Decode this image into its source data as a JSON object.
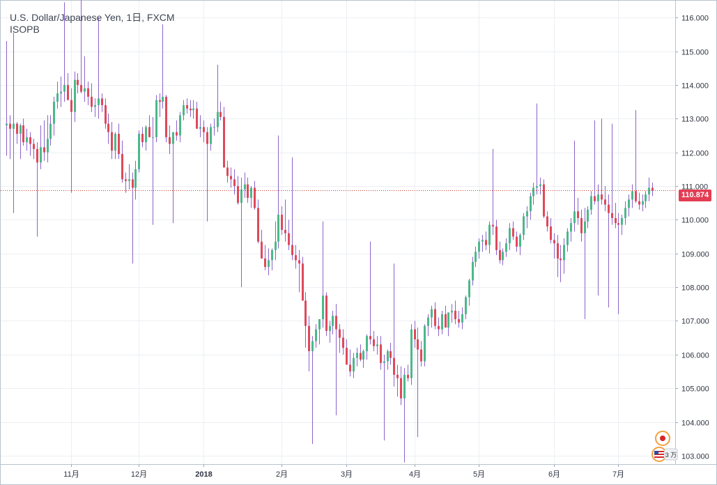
{
  "chart": {
    "title": "U.S. Dollar/Japanese Yen, 1日, FXCM",
    "subtitle": "ISOPB",
    "last_price_label": "110.874",
    "badge_text": "3 万"
  },
  "colors": {
    "up": "#4cb88a",
    "down": "#e0485a",
    "wick": "#8b63c9",
    "grid": "#eceff3",
    "axis_text": "#2f3440",
    "price_line": "#c0392b",
    "price_tag": "#e33d53"
  },
  "chart_data": {
    "type": "candlestick",
    "symbol": "USDJPY",
    "interval": "1日",
    "source": "FXCM",
    "ylim": [
      102.75,
      116.5
    ],
    "y_ticks": [
      "103.000",
      "104.000",
      "105.000",
      "106.000",
      "107.000",
      "108.000",
      "109.000",
      "110.000",
      "111.000",
      "112.000",
      "113.000",
      "114.000",
      "115.000",
      "116.000"
    ],
    "x_ticks": [
      {
        "label": "11月",
        "bar": 19
      },
      {
        "label": "12月",
        "bar": 39
      },
      {
        "label": "2018",
        "bar": 58
      },
      {
        "label": "2月",
        "bar": 81
      },
      {
        "label": "3月",
        "bar": 100
      },
      {
        "label": "4月",
        "bar": 120
      },
      {
        "label": "5月",
        "bar": 139
      },
      {
        "label": "6月",
        "bar": 161
      },
      {
        "label": "7月",
        "bar": 180
      }
    ],
    "last_price": 110.874,
    "candles": [
      [
        112.8,
        115.3,
        111.9,
        112.85
      ],
      [
        112.85,
        113.1,
        111.8,
        112.7
      ],
      [
        112.7,
        115.55,
        110.2,
        112.85
      ],
      [
        112.85,
        112.9,
        112.25,
        112.55
      ],
      [
        112.55,
        112.85,
        111.8,
        112.8
      ],
      [
        112.8,
        113.0,
        112.2,
        112.3
      ],
      [
        112.3,
        112.7,
        112.05,
        112.45
      ],
      [
        112.45,
        112.6,
        111.9,
        112.25
      ],
      [
        112.25,
        112.4,
        111.8,
        112.1
      ],
      [
        112.1,
        112.3,
        109.5,
        111.7
      ],
      [
        111.7,
        112.8,
        111.5,
        112.15
      ],
      [
        112.15,
        112.95,
        111.75,
        112.0
      ],
      [
        112.0,
        113.1,
        111.7,
        112.4
      ],
      [
        112.4,
        113.1,
        112.2,
        112.85
      ],
      [
        112.85,
        113.65,
        112.5,
        113.5
      ],
      [
        113.5,
        114.1,
        113.3,
        113.75
      ],
      [
        113.75,
        114.25,
        113.35,
        113.8
      ],
      [
        113.8,
        116.45,
        113.5,
        114.0
      ],
      [
        114.0,
        114.35,
        113.6,
        113.55
      ],
      [
        113.55,
        113.9,
        110.8,
        113.2
      ],
      [
        113.2,
        114.4,
        112.9,
        114.15
      ],
      [
        114.15,
        114.35,
        113.75,
        114.0
      ],
      [
        114.0,
        116.8,
        113.75,
        113.8
      ],
      [
        113.8,
        114.85,
        113.5,
        113.9
      ],
      [
        113.9,
        114.1,
        113.4,
        113.65
      ],
      [
        113.65,
        114.05,
        113.2,
        113.35
      ],
      [
        113.35,
        113.6,
        113.05,
        113.4
      ],
      [
        113.4,
        116.0,
        113.0,
        113.6
      ],
      [
        113.6,
        113.75,
        113.2,
        113.4
      ],
      [
        113.4,
        113.6,
        112.7,
        112.85
      ],
      [
        112.85,
        113.15,
        112.25,
        112.6
      ],
      [
        112.6,
        112.9,
        111.8,
        112.05
      ],
      [
        112.05,
        112.6,
        111.8,
        112.55
      ],
      [
        112.55,
        112.85,
        111.8,
        111.95
      ],
      [
        111.95,
        112.35,
        111.1,
        111.2
      ],
      [
        111.2,
        111.4,
        110.8,
        111.15
      ],
      [
        111.15,
        111.65,
        110.9,
        111.2
      ],
      [
        111.2,
        111.4,
        108.7,
        110.95
      ],
      [
        110.95,
        111.75,
        110.6,
        111.5
      ],
      [
        111.5,
        112.65,
        111.4,
        112.55
      ],
      [
        112.55,
        112.75,
        112.15,
        112.3
      ],
      [
        112.3,
        112.8,
        112.05,
        112.75
      ],
      [
        112.75,
        113.1,
        112.45,
        112.45
      ],
      [
        112.45,
        113.05,
        109.85,
        112.45
      ],
      [
        112.45,
        113.7,
        112.3,
        113.55
      ],
      [
        113.55,
        113.75,
        113.05,
        113.5
      ],
      [
        113.5,
        115.8,
        113.3,
        113.65
      ],
      [
        113.65,
        113.7,
        112.3,
        112.45
      ],
      [
        112.45,
        112.8,
        111.95,
        112.25
      ],
      [
        112.25,
        112.6,
        109.9,
        112.6
      ],
      [
        112.6,
        112.95,
        112.35,
        112.5
      ],
      [
        112.5,
        113.2,
        112.3,
        113.1
      ],
      [
        113.1,
        113.55,
        112.95,
        113.4
      ],
      [
        113.4,
        113.6,
        113.15,
        113.3
      ],
      [
        113.3,
        113.55,
        113.05,
        113.25
      ],
      [
        113.25,
        113.55,
        113.0,
        113.3
      ],
      [
        113.3,
        113.5,
        112.8,
        112.7
      ],
      [
        112.7,
        113.1,
        112.45,
        112.75
      ],
      [
        112.75,
        112.95,
        112.3,
        112.6
      ],
      [
        112.6,
        112.75,
        109.95,
        112.25
      ],
      [
        112.25,
        112.85,
        112.05,
        112.75
      ],
      [
        112.75,
        113.0,
        112.5,
        112.75
      ],
      [
        112.75,
        114.6,
        112.6,
        113.2
      ],
      [
        113.2,
        113.5,
        112.95,
        113.05
      ],
      [
        113.05,
        113.35,
        111.55,
        111.55
      ],
      [
        111.55,
        111.75,
        111.1,
        111.3
      ],
      [
        111.3,
        111.55,
        110.95,
        111.2
      ],
      [
        111.2,
        111.5,
        110.75,
        111.0
      ],
      [
        111.0,
        111.3,
        110.45,
        110.5
      ],
      [
        110.5,
        111.25,
        108.0,
        110.9
      ],
      [
        110.9,
        111.4,
        110.65,
        111.05
      ],
      [
        111.05,
        111.25,
        110.5,
        110.65
      ],
      [
        110.65,
        111.0,
        110.35,
        110.95
      ],
      [
        110.95,
        111.15,
        110.3,
        110.35
      ],
      [
        110.35,
        110.6,
        109.3,
        109.35
      ],
      [
        109.35,
        109.7,
        108.95,
        108.85
      ],
      [
        108.85,
        109.25,
        108.5,
        108.6
      ],
      [
        108.6,
        109.15,
        108.35,
        108.8
      ],
      [
        108.8,
        109.15,
        108.5,
        109.1
      ],
      [
        109.1,
        109.95,
        108.8,
        109.35
      ],
      [
        109.35,
        112.5,
        109.15,
        110.15
      ],
      [
        110.15,
        110.4,
        109.55,
        109.7
      ],
      [
        109.7,
        110.6,
        109.35,
        109.6
      ],
      [
        109.6,
        110.0,
        109.1,
        109.25
      ],
      [
        109.25,
        111.85,
        108.8,
        108.95
      ],
      [
        108.95,
        109.25,
        108.55,
        108.8
      ],
      [
        108.8,
        109.1,
        107.85,
        108.7
      ],
      [
        108.7,
        108.9,
        107.65,
        107.6
      ],
      [
        107.6,
        107.85,
        106.2,
        106.85
      ],
      [
        106.85,
        107.15,
        105.5,
        106.1
      ],
      [
        106.1,
        106.55,
        103.35,
        106.4
      ],
      [
        106.4,
        106.9,
        106.2,
        106.75
      ],
      [
        106.75,
        107.05,
        106.3,
        107.05
      ],
      [
        107.05,
        109.95,
        106.8,
        107.75
      ],
      [
        107.75,
        107.85,
        106.55,
        106.7
      ],
      [
        106.7,
        107.0,
        106.35,
        106.85
      ],
      [
        106.85,
        107.3,
        106.6,
        107.15
      ],
      [
        107.15,
        107.5,
        104.2,
        106.75
      ],
      [
        106.75,
        106.9,
        106.05,
        106.5
      ],
      [
        106.5,
        106.75,
        106.0,
        106.2
      ],
      [
        106.2,
        106.45,
        105.7,
        105.7
      ],
      [
        105.7,
        106.15,
        105.35,
        105.5
      ],
      [
        105.5,
        106.05,
        105.3,
        105.9
      ],
      [
        105.9,
        106.2,
        105.65,
        106.05
      ],
      [
        106.05,
        106.3,
        105.8,
        105.85
      ],
      [
        105.85,
        106.15,
        105.6,
        106.1
      ],
      [
        106.1,
        106.6,
        105.85,
        106.55
      ],
      [
        106.55,
        109.35,
        106.3,
        106.45
      ],
      [
        106.45,
        106.7,
        106.1,
        106.25
      ],
      [
        106.25,
        106.55,
        106.0,
        106.3
      ],
      [
        106.3,
        106.55,
        105.55,
        105.75
      ],
      [
        105.75,
        106.0,
        103.45,
        105.8
      ],
      [
        105.8,
        106.15,
        105.55,
        106.1
      ],
      [
        106.1,
        106.35,
        105.7,
        105.9
      ],
      [
        105.9,
        108.7,
        105.05,
        105.4
      ],
      [
        105.4,
        105.7,
        104.75,
        105.3
      ],
      [
        105.3,
        105.65,
        104.5,
        104.7
      ],
      [
        104.7,
        105.6,
        102.8,
        105.4
      ],
      [
        105.4,
        105.7,
        105.2,
        105.3
      ],
      [
        105.3,
        106.9,
        105.1,
        106.75
      ],
      [
        106.75,
        107.0,
        106.2,
        106.45
      ],
      [
        106.45,
        106.8,
        103.55,
        106.15
      ],
      [
        106.15,
        106.4,
        105.65,
        105.8
      ],
      [
        105.8,
        106.9,
        105.65,
        106.85
      ],
      [
        106.85,
        107.2,
        106.55,
        107.1
      ],
      [
        107.1,
        107.45,
        106.8,
        107.35
      ],
      [
        107.35,
        107.55,
        106.75,
        106.85
      ],
      [
        106.85,
        107.1,
        106.55,
        106.75
      ],
      [
        106.75,
        107.3,
        106.6,
        107.2
      ],
      [
        107.2,
        107.45,
        106.9,
        106.8
      ],
      [
        106.8,
        107.25,
        106.55,
        107.25
      ],
      [
        107.25,
        107.5,
        106.95,
        107.3
      ],
      [
        107.3,
        107.6,
        106.9,
        107.05
      ],
      [
        107.05,
        107.3,
        106.8,
        106.95
      ],
      [
        106.95,
        107.4,
        106.75,
        107.2
      ],
      [
        107.2,
        107.75,
        107.05,
        107.7
      ],
      [
        107.7,
        108.25,
        107.45,
        108.2
      ],
      [
        108.2,
        108.9,
        108.05,
        108.75
      ],
      [
        108.75,
        109.2,
        108.6,
        109.05
      ],
      [
        109.05,
        109.45,
        108.85,
        109.35
      ],
      [
        109.35,
        109.55,
        109.05,
        109.4
      ],
      [
        109.4,
        109.65,
        109.1,
        109.25
      ],
      [
        109.25,
        109.95,
        109.0,
        109.85
      ],
      [
        109.85,
        112.1,
        109.55,
        109.8
      ],
      [
        109.8,
        110.0,
        108.95,
        109.1
      ],
      [
        109.1,
        109.35,
        108.7,
        108.8
      ],
      [
        108.8,
        109.15,
        108.65,
        109.05
      ],
      [
        109.05,
        109.45,
        108.9,
        109.3
      ],
      [
        109.3,
        109.9,
        109.1,
        109.75
      ],
      [
        109.75,
        109.95,
        109.4,
        109.5
      ],
      [
        109.5,
        109.65,
        109.05,
        109.2
      ],
      [
        109.2,
        109.6,
        108.95,
        109.55
      ],
      [
        109.55,
        110.2,
        109.4,
        110.1
      ],
      [
        110.1,
        110.4,
        109.75,
        110.25
      ],
      [
        110.25,
        110.8,
        110.0,
        110.7
      ],
      [
        110.7,
        111.1,
        110.45,
        110.95
      ],
      [
        110.95,
        113.45,
        110.75,
        111.0
      ],
      [
        111.0,
        111.25,
        110.75,
        111.05
      ],
      [
        111.05,
        111.2,
        110.05,
        110.1
      ],
      [
        110.1,
        110.25,
        109.65,
        109.8
      ],
      [
        109.8,
        110.05,
        109.3,
        109.4
      ],
      [
        109.4,
        109.6,
        108.85,
        109.3
      ],
      [
        109.3,
        109.55,
        108.3,
        108.85
      ],
      [
        108.85,
        109.25,
        108.15,
        108.8
      ],
      [
        108.8,
        109.45,
        108.4,
        109.25
      ],
      [
        109.25,
        109.75,
        109.05,
        109.65
      ],
      [
        109.65,
        110.05,
        109.35,
        109.9
      ],
      [
        109.9,
        112.35,
        109.65,
        110.25
      ],
      [
        110.25,
        110.65,
        109.85,
        110.05
      ],
      [
        110.05,
        110.3,
        109.35,
        109.6
      ],
      [
        109.6,
        110.35,
        107.05,
        109.95
      ],
      [
        109.95,
        110.4,
        109.75,
        110.3
      ],
      [
        110.3,
        110.85,
        110.15,
        110.7
      ],
      [
        110.7,
        112.95,
        110.45,
        110.55
      ],
      [
        110.55,
        111.05,
        107.75,
        110.75
      ],
      [
        110.75,
        113.0,
        110.45,
        110.6
      ],
      [
        110.6,
        111.0,
        110.25,
        110.45
      ],
      [
        110.45,
        110.75,
        107.4,
        110.2
      ],
      [
        110.2,
        112.85,
        109.85,
        110.05
      ],
      [
        110.05,
        110.5,
        109.75,
        109.9
      ],
      [
        109.9,
        110.2,
        107.2,
        109.85
      ],
      [
        109.85,
        110.15,
        109.55,
        110.05
      ],
      [
        110.05,
        110.55,
        109.85,
        110.35
      ],
      [
        110.35,
        110.75,
        110.1,
        110.6
      ],
      [
        110.6,
        111.05,
        110.35,
        110.85
      ],
      [
        110.85,
        113.25,
        110.5,
        110.55
      ],
      [
        110.55,
        110.8,
        110.3,
        110.45
      ],
      [
        110.45,
        110.75,
        110.25,
        110.55
      ],
      [
        110.55,
        110.85,
        110.35,
        110.75
      ],
      [
        110.75,
        111.25,
        110.55,
        110.95
      ],
      [
        110.95,
        111.1,
        110.7,
        110.87
      ]
    ]
  }
}
